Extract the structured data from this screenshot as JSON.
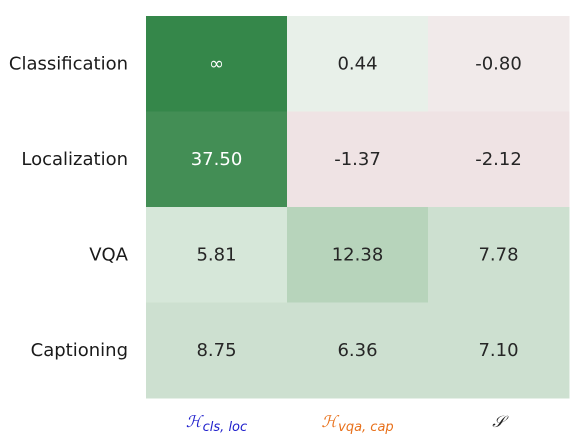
{
  "chart_data": {
    "type": "heatmap",
    "rows": [
      "Classification",
      "Localization",
      "VQA",
      "Captioning"
    ],
    "columns": [
      {
        "main": "ℋ",
        "sub": "cls, loc",
        "color": "#1f1fcc"
      },
      {
        "main": "ℋ",
        "sub": "vqa, cap",
        "color": "#e8701a"
      },
      {
        "main": "𝒮",
        "sub": "",
        "color": "#222222"
      }
    ],
    "values": [
      [
        "∞",
        0.44,
        -0.8
      ],
      [
        37.5,
        -1.37,
        -2.12
      ],
      [
        5.81,
        12.38,
        7.78
      ],
      [
        8.75,
        6.36,
        7.1
      ]
    ],
    "labels": [
      [
        "∞",
        "0.44",
        "-0.80"
      ],
      [
        "37.50",
        "-1.37",
        "-2.12"
      ],
      [
        "5.81",
        "12.38",
        "7.78"
      ],
      [
        "8.75",
        "6.36",
        "7.10"
      ]
    ],
    "colors": {
      "strong_positive": "#35874a",
      "high_positive": "#438e55",
      "mid_positive": "#b7d4bb",
      "low_positive": "#cde0d0",
      "weak_positive": "#d6e7d9",
      "near_zero_positive": "#e8f0e9",
      "weak_negative": "#f1eaea",
      "negative": "#efe3e4"
    },
    "grid": false,
    "legend": "none"
  }
}
